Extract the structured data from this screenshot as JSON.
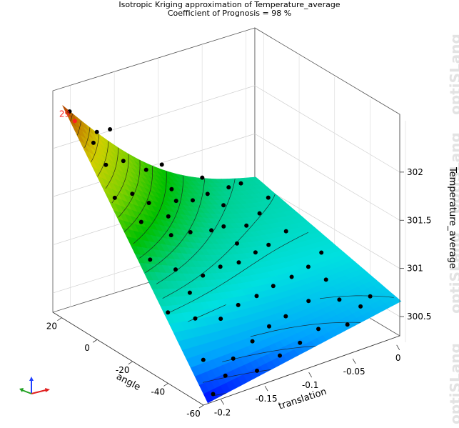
{
  "title": "Isotropic Kriging approximation of Temperature_average",
  "subtitle": "Coefficient of Prognosis = 98 %",
  "watermark": "optiSLang",
  "colors": {
    "surface_scale": [
      "#0000ff",
      "#00a0ff",
      "#00e0e0",
      "#00d090",
      "#00c000",
      "#7fd000",
      "#d0d000",
      "#c07000",
      "#a00000"
    ],
    "point": "#000000",
    "highlight": "#ff2020"
  },
  "chart_data": {
    "type": "surface3d",
    "title": "Isotropic Kriging approximation of Temperature_average",
    "subtitle": "Coefficient of Prognosis = 98 %",
    "x_axis": {
      "label": "translation",
      "ticks": [
        "-0.2",
        "-0.15",
        "-0.1",
        "-0.05",
        "0"
      ],
      "range": [
        -0.22,
        0.01
      ]
    },
    "y_axis": {
      "label": "angle",
      "ticks": [
        "20",
        "0",
        "-20",
        "-40",
        "-60"
      ],
      "range": [
        -60,
        25
      ]
    },
    "z_axis": {
      "label": "Temperature_average",
      "ticks": [
        "300.5",
        "301",
        "301.5",
        "302"
      ],
      "range": [
        300.3,
        302.6
      ]
    },
    "contour_lines": true,
    "grid": true,
    "highlighted_point": {
      "label": "29",
      "translation": -0.205,
      "angle": 20,
      "z": 302.3
    },
    "surface_corners": {
      "translation_min_angle_max": 302.6,
      "translation_max_angle_max": 301.1,
      "translation_max_angle_min": 300.75,
      "translation_min_angle_min": 300.3
    },
    "points": [
      [
        -0.215,
        18,
        302.45
      ],
      [
        -0.19,
        15,
        302.2
      ],
      [
        -0.17,
        10,
        301.9
      ],
      [
        -0.14,
        12,
        301.7
      ],
      [
        -0.2,
        5,
        302.0
      ],
      [
        -0.18,
        0,
        301.7
      ],
      [
        -0.155,
        3,
        301.5
      ],
      [
        -0.12,
        5,
        301.4
      ],
      [
        -0.095,
        8,
        301.3
      ],
      [
        -0.07,
        12,
        301.25
      ],
      [
        -0.04,
        15,
        301.2
      ],
      [
        -0.02,
        18,
        301.15
      ],
      [
        -0.21,
        -5,
        301.8
      ],
      [
        -0.19,
        -10,
        301.55
      ],
      [
        -0.16,
        -12,
        301.35
      ],
      [
        -0.13,
        -8,
        301.25
      ],
      [
        -0.1,
        -5,
        301.15
      ],
      [
        -0.08,
        -2,
        301.1
      ],
      [
        -0.05,
        0,
        301.0
      ],
      [
        -0.025,
        5,
        301.0
      ],
      [
        -0.2,
        -20,
        301.3
      ],
      [
        -0.175,
        -22,
        301.15
      ],
      [
        -0.15,
        -25,
        301.05
      ],
      [
        -0.12,
        -20,
        301.0
      ],
      [
        -0.095,
        -18,
        300.95
      ],
      [
        -0.07,
        -15,
        300.95
      ],
      [
        -0.045,
        -10,
        300.9
      ],
      [
        -0.015,
        -5,
        300.9
      ],
      [
        -0.21,
        -35,
        300.95
      ],
      [
        -0.185,
        -38,
        300.85
      ],
      [
        -0.16,
        -40,
        300.8
      ],
      [
        -0.13,
        -35,
        300.8
      ],
      [
        -0.105,
        -33,
        300.8
      ],
      [
        -0.08,
        -30,
        300.8
      ],
      [
        -0.055,
        -28,
        300.8
      ],
      [
        -0.03,
        -25,
        300.8
      ],
      [
        -0.005,
        -20,
        300.82
      ],
      [
        -0.2,
        -50,
        300.6
      ],
      [
        -0.17,
        -52,
        300.55
      ],
      [
        -0.14,
        -48,
        300.6
      ],
      [
        -0.115,
        -45,
        300.65
      ],
      [
        -0.09,
        -42,
        300.65
      ],
      [
        -0.06,
        -40,
        300.7
      ],
      [
        -0.035,
        -45,
        300.7
      ],
      [
        -0.01,
        -50,
        300.72
      ],
      [
        -0.205,
        -58,
        300.35
      ],
      [
        -0.185,
        -55,
        300.45
      ],
      [
        -0.155,
        -58,
        300.45
      ],
      [
        -0.125,
        -56,
        300.5
      ],
      [
        -0.1,
        -55,
        300.55
      ],
      [
        -0.075,
        -53,
        300.6
      ],
      [
        -0.05,
        -57,
        300.62
      ],
      [
        -0.025,
        -52,
        300.68
      ],
      [
        -0.165,
        20,
        302.1
      ],
      [
        -0.11,
        18,
        301.6
      ],
      [
        -0.06,
        20,
        301.3
      ],
      [
        -0.2,
        12,
        302.15
      ],
      [
        -0.145,
        -3,
        301.4
      ],
      [
        -0.085,
        -12,
        301.05
      ],
      [
        -0.03,
        -35,
        300.78
      ],
      [
        -0.175,
        -30,
        301.0
      ],
      [
        -0.06,
        8,
        301.15
      ],
      [
        -0.115,
        10,
        301.45
      ],
      [
        -0.005,
        10,
        301.05
      ]
    ]
  }
}
